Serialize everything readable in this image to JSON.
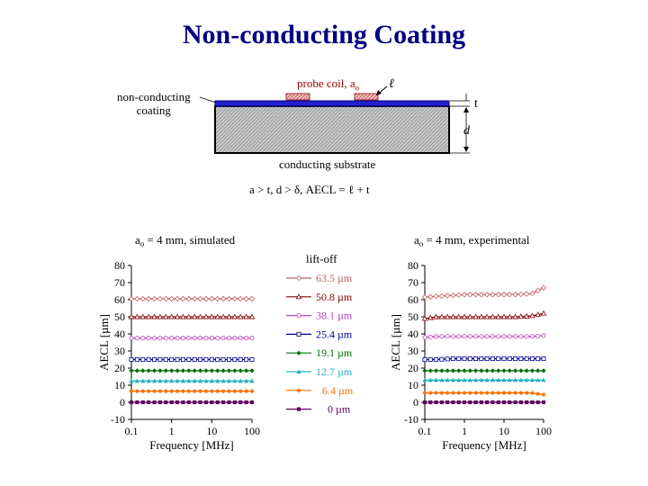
{
  "title": "Non-conducting Coating",
  "diagram": {
    "probe_label": "probe coil, a",
    "probe_sub": "o",
    "ell_label": "ℓ",
    "t_label": "t",
    "d_label": "d",
    "coating_label_line1": "non-conducting",
    "coating_label_line2": "coating",
    "substrate_label": "conducting substrate",
    "condition": "a  > t,   d > δ,  AECL = ℓ + t"
  },
  "legend": {
    "title": "lift-off",
    "entries": [
      "63.5 µm",
      "50.8 µm",
      "38.1 µm",
      "25.4 µm",
      "19.1 µm",
      "12.7 µm",
      "6.4 µm",
      "0 µm"
    ]
  },
  "colors": {
    "title": "#000080",
    "series": [
      "#c06060",
      "#800000",
      "#c040c0",
      "#000090",
      "#007000",
      "#20b0c0",
      "#ff7000",
      "#600060"
    ],
    "coating": "#2222cc",
    "substrate": "#c8c8c8"
  },
  "chart_data": [
    {
      "type": "line",
      "title": "a  = 4 mm, simulated",
      "xlabel": "Frequency [MHz]",
      "ylabel": "AECL  [µm]",
      "x_scale": "log",
      "xlim": [
        0.1,
        100
      ],
      "ylim": [
        -10,
        80
      ],
      "x_ticks": [
        "0.1",
        "1",
        "10",
        "100"
      ],
      "y_ticks": [
        "-10",
        "0",
        "10",
        "20",
        "30",
        "40",
        "50",
        "60",
        "70",
        "80"
      ],
      "x": [
        0.1,
        0.2,
        0.5,
        1,
        2,
        5,
        10,
        20,
        50,
        100
      ],
      "series": [
        {
          "name": "63.5 µm",
          "values": [
            60.5,
            60.5,
            60.5,
            60.5,
            60.5,
            60.5,
            60.5,
            60.5,
            60.5,
            60.5
          ]
        },
        {
          "name": "50.8 µm",
          "values": [
            50,
            50,
            50,
            50,
            50,
            50,
            50,
            50,
            50,
            50
          ]
        },
        {
          "name": "38.1 µm",
          "values": [
            37.5,
            37.5,
            37.5,
            37.5,
            37.5,
            37.5,
            37.5,
            37.5,
            37.5,
            37.5
          ]
        },
        {
          "name": "25.4 µm",
          "values": [
            25,
            25,
            25,
            25,
            25,
            25,
            25,
            25,
            25,
            25
          ]
        },
        {
          "name": "19.1 µm",
          "values": [
            18.5,
            18.5,
            18.5,
            18.5,
            18.5,
            18.5,
            18.5,
            18.5,
            18.5,
            18.5
          ]
        },
        {
          "name": "12.7 µm",
          "values": [
            12.5,
            12.5,
            12.5,
            12.5,
            12.5,
            12.5,
            12.5,
            12.5,
            12.5,
            12.5
          ]
        },
        {
          "name": "6.4 µm",
          "values": [
            6.5,
            6.5,
            6.5,
            6.5,
            6.5,
            6.5,
            6.5,
            6.5,
            6.5,
            6.5
          ]
        },
        {
          "name": "0 µm",
          "values": [
            0,
            0,
            0,
            0,
            0,
            0,
            0,
            0,
            0,
            0
          ]
        }
      ]
    },
    {
      "type": "line",
      "title": "a  = 4 mm, experimental",
      "xlabel": "Frequency [MHz]",
      "ylabel": "AECL  [µm]",
      "x_scale": "log",
      "xlim": [
        0.1,
        100
      ],
      "ylim": [
        -10,
        80
      ],
      "x_ticks": [
        "0.1",
        "1",
        "10",
        "100"
      ],
      "y_ticks": [
        "-10",
        "0",
        "10",
        "20",
        "30",
        "40",
        "50",
        "60",
        "70",
        "80"
      ],
      "x": [
        0.1,
        0.2,
        0.5,
        1,
        2,
        5,
        10,
        20,
        50,
        100
      ],
      "series": [
        {
          "name": "63.5 µm",
          "values": [
            61.5,
            62,
            62.5,
            63,
            63,
            63,
            63,
            63,
            63.5,
            67
          ]
        },
        {
          "name": "50.8 µm",
          "values": [
            49,
            50,
            50,
            50,
            50,
            50,
            50,
            50,
            50.5,
            52
          ]
        },
        {
          "name": "38.1 µm",
          "values": [
            38,
            38.5,
            38.5,
            38.5,
            38.5,
            38.5,
            38.5,
            38.5,
            38.5,
            39
          ]
        },
        {
          "name": "25.4 µm",
          "values": [
            25,
            25,
            25.5,
            25.5,
            25.5,
            25.5,
            25.5,
            25.5,
            25.5,
            25.5
          ]
        },
        {
          "name": "19.1 µm",
          "values": [
            18.5,
            18.5,
            18.5,
            18.5,
            18.5,
            18.5,
            18.5,
            18.5,
            18.5,
            18.5
          ]
        },
        {
          "name": "12.7 µm",
          "values": [
            13,
            13,
            13,
            13,
            13,
            13,
            13,
            13,
            13,
            13
          ]
        },
        {
          "name": "6.4 µm",
          "values": [
            5.5,
            5.5,
            5.5,
            5.5,
            5.5,
            5.5,
            5.5,
            5.5,
            5.5,
            4.5
          ]
        },
        {
          "name": "0 µm",
          "values": [
            0,
            0,
            0,
            0,
            0,
            0,
            0,
            0,
            0,
            0
          ]
        }
      ]
    }
  ]
}
